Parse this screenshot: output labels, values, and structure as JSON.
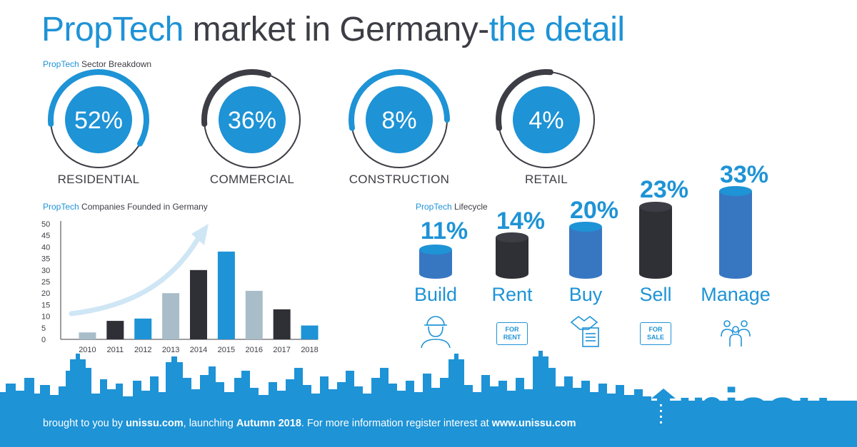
{
  "header": {
    "title_part1": "PropTech",
    "title_part2": " market in Germany-",
    "title_part3": "the detail"
  },
  "sector": {
    "label_accent": "PropTech",
    "label_rest": " Sector Breakdown",
    "items": [
      {
        "percent": "52%",
        "value": 52,
        "label": "RESIDENTIAL",
        "arc_color": "#1e93d6"
      },
      {
        "percent": "36%",
        "value": 36,
        "label": "COMMERCIAL",
        "arc_color": "#3d3d45"
      },
      {
        "percent": "8%",
        "value": 8,
        "label": "CONSTRUCTION",
        "arc_color": "#1e93d6"
      },
      {
        "percent": "4%",
        "value": 4,
        "label": "RETAIL",
        "arc_color": "#3d3d45"
      }
    ]
  },
  "founded": {
    "label_accent": "PropTech",
    "label_rest": " Companies Founded in Germany"
  },
  "chart_data": {
    "type": "bar",
    "categories": [
      "2010",
      "2011",
      "2012",
      "2013",
      "2014",
      "2015",
      "2016",
      "2017",
      "2018"
    ],
    "values": [
      3,
      8,
      9,
      20,
      30,
      38,
      21,
      13,
      6
    ],
    "bar_colors": [
      "#a9bdc9",
      "#2f2f36",
      "#1e93d6",
      "#a9bdc9",
      "#2f2f36",
      "#1e93d6",
      "#a9bdc9",
      "#2f2f36",
      "#1e93d6"
    ],
    "ylim": [
      0,
      50
    ],
    "yticks": [
      "0",
      "5",
      "10",
      "15",
      "20",
      "25",
      "30",
      "35",
      "40",
      "45",
      "50"
    ],
    "xlabel": "",
    "ylabel": "",
    "title": ""
  },
  "lifecycle": {
    "label_accent": "PropTech",
    "label_rest": " Lifecycle",
    "items": [
      {
        "percent": "11%",
        "name": "Build",
        "value": 11,
        "color": "#1e93d6",
        "icon": "builder-icon"
      },
      {
        "percent": "14%",
        "name": "Rent",
        "value": 14,
        "color": "#2f2f36",
        "icon": "for-rent-sign-icon",
        "sign": [
          "FOR",
          "RENT"
        ]
      },
      {
        "percent": "20%",
        "name": "Buy",
        "value": 20,
        "color": "#1e93d6",
        "icon": "handshake-contract-icon"
      },
      {
        "percent": "23%",
        "name": "Sell",
        "value": 23,
        "color": "#2f2f36",
        "icon": "for-sale-sign-icon",
        "sign": [
          "FOR",
          "SALE"
        ]
      },
      {
        "percent": "33%",
        "name": "Manage",
        "value": 33,
        "color": "#1e93d6",
        "icon": "people-group-icon"
      }
    ]
  },
  "footer": {
    "t1": "brought to you by ",
    "t2": "unissu.com",
    "t3": ", launching ",
    "t4": "Autumn 2018",
    "t5": ". For more information register interest at ",
    "t6": "www.unissu.com"
  },
  "logo": {
    "text": "unissu"
  }
}
